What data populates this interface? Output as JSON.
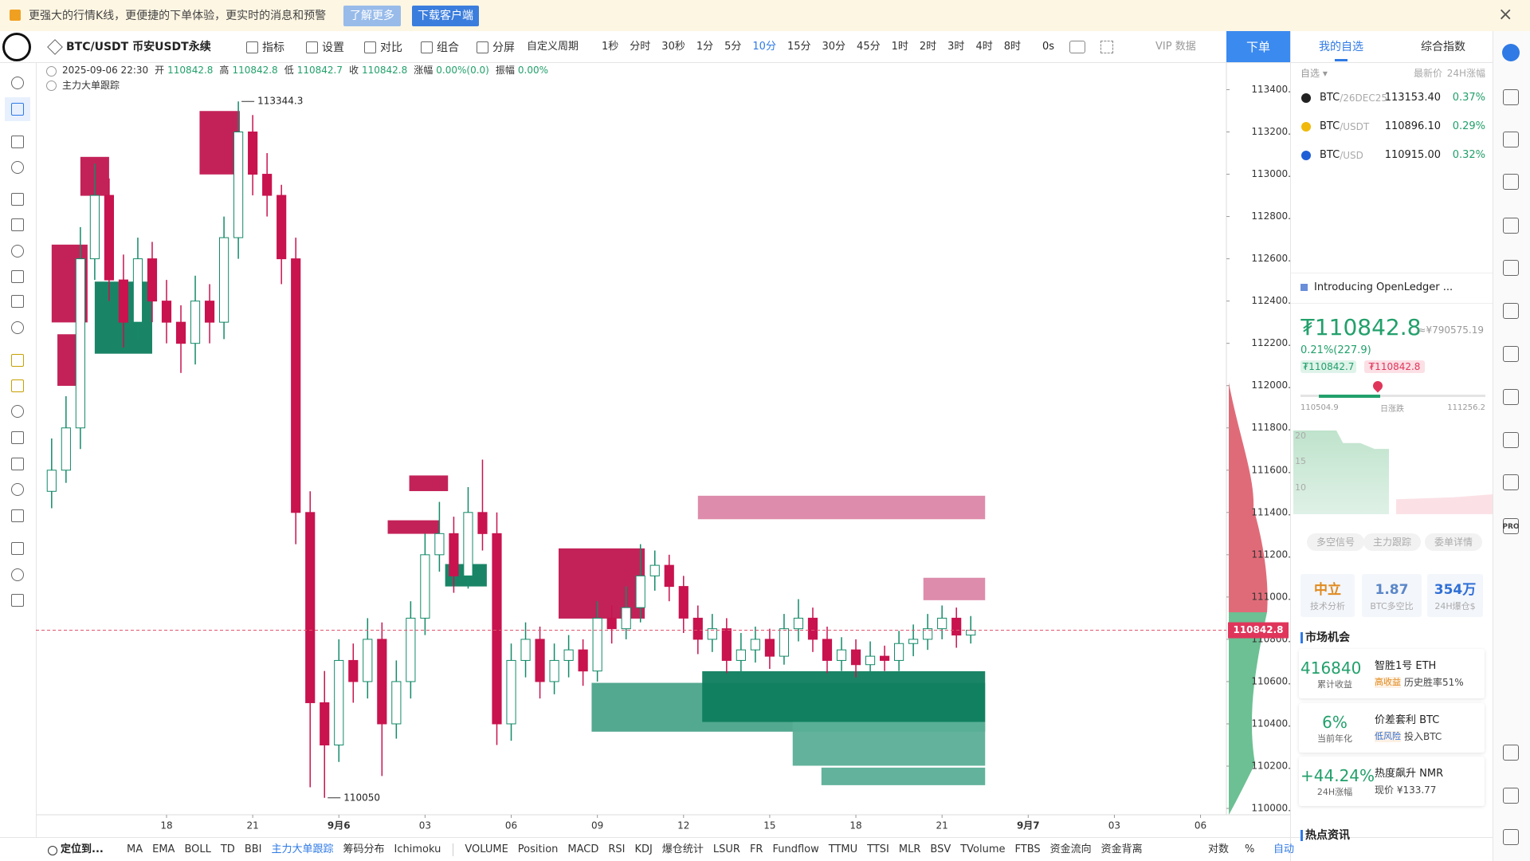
{
  "banner": {
    "text": "更强大的行情K线，更便捷的下单体验，更实时的消息和预警",
    "learn": "了解更多",
    "download": "下载客户端"
  },
  "toolbar": {
    "symbol": "BTC/USDT 币安USDT永续",
    "items": [
      "指标",
      "设置",
      "对比",
      "组合",
      "分屏"
    ],
    "period": "自定义周期",
    "intervals": [
      "1秒",
      "分时",
      "30秒",
      "1分",
      "5分",
      "10分",
      "15分",
      "30分",
      "45分",
      "1时",
      "2时",
      "3时",
      "4时",
      "8时"
    ],
    "countdown": "0s",
    "vip": "VIP 数据",
    "order": "下单"
  },
  "legend": {
    "time": "2025-09-06 22:30",
    "fields": [
      {
        "label": "开",
        "value": "110842.8"
      },
      {
        "label": "高",
        "value": "110842.8"
      },
      {
        "label": "低",
        "value": "110842.7"
      },
      {
        "label": "收",
        "value": "110842.8"
      },
      {
        "label": "涨幅",
        "value": "0.00%(0.0)"
      },
      {
        "label": "振幅",
        "value": "0.00%"
      }
    ],
    "indicator": "主力大单跟踪"
  },
  "chart_data": {
    "type": "candlestick",
    "up_color": "#138a69",
    "down_color": "#c8134f",
    "x": [
      14,
      14.5,
      15,
      15.5,
      16,
      16.5,
      17,
      17.5,
      18,
      18.5,
      19,
      19.5,
      20,
      20.5,
      21,
      21.5,
      22,
      22.5,
      23,
      23.5,
      24,
      24.5,
      25,
      25.5,
      26,
      26.5,
      27,
      27.5,
      28,
      28.5,
      29,
      29.5,
      30,
      30.5,
      31,
      31.5,
      32,
      32.5,
      33,
      33.5,
      34,
      34.5,
      35,
      35.5,
      36,
      36.5,
      37,
      37.5,
      38,
      38.5,
      39,
      39.5,
      40,
      40.5,
      41,
      41.5,
      42,
      42.5,
      43,
      43.5,
      44,
      44.5,
      45,
      45.5,
      46
    ],
    "open": [
      111500,
      111600,
      111800,
      112600,
      112900,
      112500,
      112300,
      112600,
      112400,
      112300,
      112200,
      112400,
      112300,
      112700,
      113200,
      113000,
      112900,
      112600,
      111400,
      110500,
      110300,
      110700,
      110600,
      110800,
      110400,
      110600,
      110900,
      111200,
      111300,
      111100,
      111400,
      111300,
      110400,
      110700,
      110800,
      110600,
      110700,
      110750,
      110650,
      110900,
      110850,
      110950,
      111100,
      111150,
      111050,
      110900,
      110800,
      110850,
      110700,
      110750,
      110800,
      110720,
      110850,
      110900,
      110800,
      110700,
      110750,
      110680,
      110720,
      110700,
      110780,
      110800,
      110850,
      110900,
      110820
    ],
    "high": [
      111750,
      111950,
      112750,
      113050,
      112980,
      112620,
      112700,
      112680,
      112500,
      112380,
      112520,
      112480,
      112800,
      113344.3,
      113280,
      113100,
      112950,
      112700,
      111500,
      110650,
      110800,
      110780,
      110900,
      110880,
      110700,
      110980,
      111300,
      111450,
      111380,
      111520,
      111650,
      111400,
      110780,
      110880,
      110860,
      110780,
      110820,
      110800,
      110980,
      110960,
      111050,
      111250,
      111220,
      111200,
      111100,
      110960,
      110920,
      110900,
      110830,
      110860,
      110850,
      110920,
      110990,
      110950,
      110860,
      110810,
      110800,
      110790,
      110770,
      110840,
      110870,
      110920,
      110960,
      110950,
      110910
    ],
    "low": [
      111420,
      111540,
      111700,
      112500,
      112400,
      112180,
      112220,
      112300,
      112200,
      112060,
      112100,
      112200,
      112220,
      112600,
      112900,
      112800,
      112480,
      111250,
      110100,
      110050,
      110220,
      110500,
      110520,
      110153.3,
      110330,
      110520,
      110820,
      111120,
      111020,
      111040,
      111220,
      110300,
      110320,
      110620,
      110520,
      110540,
      110620,
      110580,
      110600,
      110780,
      110800,
      110880,
      111030,
      110980,
      110830,
      110730,
      110740,
      110640,
      110640,
      110690,
      110660,
      110680,
      110790,
      110740,
      110640,
      110650,
      110620,
      110640,
      110650,
      110650,
      110720,
      110750,
      110800,
      110760,
      110780
    ],
    "close": [
      111600,
      111800,
      112600,
      112900,
      112500,
      112300,
      112600,
      112400,
      112300,
      112200,
      112400,
      112300,
      112700,
      113200,
      113000,
      112900,
      112600,
      111400,
      110500,
      110300,
      110700,
      110600,
      110800,
      110400,
      110600,
      110900,
      111200,
      111300,
      111100,
      111400,
      111300,
      110400,
      110700,
      110800,
      110600,
      110700,
      110750,
      110650,
      110900,
      110850,
      110950,
      111100,
      111150,
      111050,
      110900,
      110800,
      110850,
      110700,
      110750,
      110800,
      110720,
      110850,
      110900,
      110800,
      110700,
      110750,
      110680,
      110720,
      110700,
      110780,
      110800,
      110850,
      110900,
      110820,
      110842.8
    ],
    "zones": [
      {
        "from": 14.0,
        "to": 15.25,
        "low": 112299,
        "high": 112667,
        "color": "#c0164f"
      },
      {
        "from": 14.2,
        "to": 15.05,
        "low": 111999,
        "high": 112243,
        "color": "#c0164f"
      },
      {
        "from": 15.0,
        "to": 16.0,
        "low": 112898,
        "high": 113082,
        "color": "#c0164f"
      },
      {
        "from": 19.15,
        "to": 20.55,
        "low": 112999,
        "high": 113299,
        "color": "#c0164f"
      },
      {
        "from": 15.5,
        "to": 17.5,
        "low": 112151,
        "high": 112492,
        "color": "#0e7d5e"
      },
      {
        "from": 26.45,
        "to": 27.8,
        "low": 111501,
        "high": 111575,
        "color": "#c0164f"
      },
      {
        "from": 25.7,
        "to": 27.5,
        "low": 111299,
        "high": 111363,
        "color": "#c0164f"
      },
      {
        "from": 27.7,
        "to": 29.15,
        "low": 111050,
        "high": 111156,
        "color": "#0e7d5e"
      },
      {
        "from": 31.65,
        "to": 34.65,
        "low": 110898,
        "high": 111230,
        "color": "#c0164f"
      },
      {
        "from": 36.5,
        "to": 46.5,
        "low": 111368,
        "high": 111479,
        "color": "#db86a6"
      },
      {
        "from": 44.35,
        "to": 46.5,
        "low": 110985,
        "high": 111091,
        "color": "#db86a6"
      },
      {
        "from": 32.8,
        "to": 46.5,
        "low": 110363,
        "high": 110594,
        "color": "#4aa38a"
      },
      {
        "from": 36.65,
        "to": 46.5,
        "low": 110409,
        "high": 110649,
        "color": "#0e7d5e"
      },
      {
        "from": 39.8,
        "to": 46.5,
        "low": 110202,
        "high": 110409,
        "color": "#5aae97"
      },
      {
        "from": 40.8,
        "to": 46.5,
        "low": 110110,
        "high": 110193,
        "color": "#5aae97"
      }
    ],
    "xlim": [
      13.45,
      54.9
    ],
    "xticks": [
      18,
      21,
      {
        "value": 24,
        "label": "9月6"
      },
      {
        "value": 27,
        "label": "03"
      },
      {
        "value": 30,
        "label": "06"
      },
      {
        "value": 33,
        "label": "09"
      },
      {
        "value": 36,
        "label": "12"
      },
      {
        "value": 39,
        "label": "15"
      },
      {
        "value": 42,
        "label": "18"
      },
      {
        "value": 45,
        "label": "21"
      },
      {
        "value": 48,
        "label": "9月7"
      },
      {
        "value": 51,
        "label": "03"
      },
      {
        "value": 54,
        "label": "06"
      }
    ],
    "ylim": [
      109970,
      113530
    ],
    "yticks": [
      {
        "value": 110000,
        "label": "110000.0"
      },
      {
        "value": 110200,
        "label": "110200.0"
      },
      {
        "value": 110400,
        "label": "110400.0"
      },
      {
        "value": 110600,
        "label": "110600.0"
      },
      {
        "value": 110800,
        "label": "110800.0"
      },
      {
        "value": 111000,
        "label": "111000.0"
      },
      {
        "value": 111200,
        "label": "111200.0"
      },
      {
        "value": 111400,
        "label": "111400.0"
      },
      {
        "value": 111600,
        "label": "111600.0"
      },
      {
        "value": 111800,
        "label": "111800.0"
      },
      {
        "value": 112000,
        "label": "112000.0"
      },
      {
        "value": 112200,
        "label": "112200.0"
      },
      {
        "value": 112400,
        "label": "112400.0"
      },
      {
        "value": 112600,
        "label": "112600.0"
      },
      {
        "value": 112800,
        "label": "112800.0"
      },
      {
        "value": 113000,
        "label": "113000.0"
      },
      {
        "value": 113200,
        "label": "113200.0"
      },
      {
        "value": 113400,
        "label": "113400.0"
      }
    ],
    "grid": false
  },
  "right_panel": {
    "tabs": [
      "我的自选",
      "综合指数"
    ],
    "header": {
      "group": "自选 ▾",
      "price": "最新价",
      "change": "24H涨幅"
    },
    "rows": [
      {
        "name": "BTC",
        "suffix": "/26DEC25",
        "price": "113153.40",
        "change": "0.37%"
      },
      {
        "name": "BTC",
        "suffix": "/USDT",
        "price": "110896.10",
        "change": "0.29%"
      },
      {
        "name": "BTC",
        "suffix": "/USD",
        "price": "110915.00",
        "change": "0.32%"
      }
    ],
    "news": "Introducing OpenLedger ...",
    "price": "₮110842.8",
    "price_cny": "≈¥790575.19",
    "change": "0.21%(227.9)",
    "bid": "₮110842.7",
    "ask": "₮110842.8",
    "range": {
      "low": "110504.9",
      "label": "日涨跌",
      "high": "111256.2"
    },
    "mini_ticks": [
      "20",
      "15",
      "10"
    ],
    "sub_tabs": [
      "多空信号",
      "主力跟踪",
      "委单详情"
    ],
    "stats": [
      {
        "value": "中立",
        "label": "技术分析"
      },
      {
        "value": "1.87",
        "label": "BTC多空比"
      },
      {
        "value": "354万",
        "label": "24H爆仓$"
      }
    ],
    "market_title": "市场机会",
    "cards": [
      {
        "value": "416840",
        "label": "累计收益",
        "title": "智胜1号 ETH",
        "tag": "高收益",
        "desc": "历史胜率51%"
      },
      {
        "value": "6%",
        "label": "当前年化",
        "title": "价差套利 BTC",
        "tag": "低风险",
        "desc": "投入BTC"
      },
      {
        "value": "+44.24%",
        "label": "24H涨幅",
        "title": "热度飙升 NMR",
        "desc": "现价 ¥133.77"
      }
    ],
    "news_title": "热点资讯"
  },
  "sidebar": {
    "pro": "PRO"
  },
  "bottom_bar": {
    "locate": "定位到...",
    "main": [
      "MA",
      "EMA",
      "BOLL",
      "TD",
      "BBI",
      "主力大单跟踪",
      "筹码分布",
      "Ichimoku"
    ],
    "sub": [
      "VOLUME",
      "Position",
      "MACD",
      "RSI",
      "KDJ",
      "爆仓统计",
      "LSUR",
      "FR",
      "Fundflow",
      "TTMU",
      "TTSI",
      "MLR",
      "BSV",
      "TVolume",
      "FTBS",
      "资金流向",
      "资金背离"
    ],
    "right": [
      "对数",
      "%",
      "自动"
    ]
  }
}
